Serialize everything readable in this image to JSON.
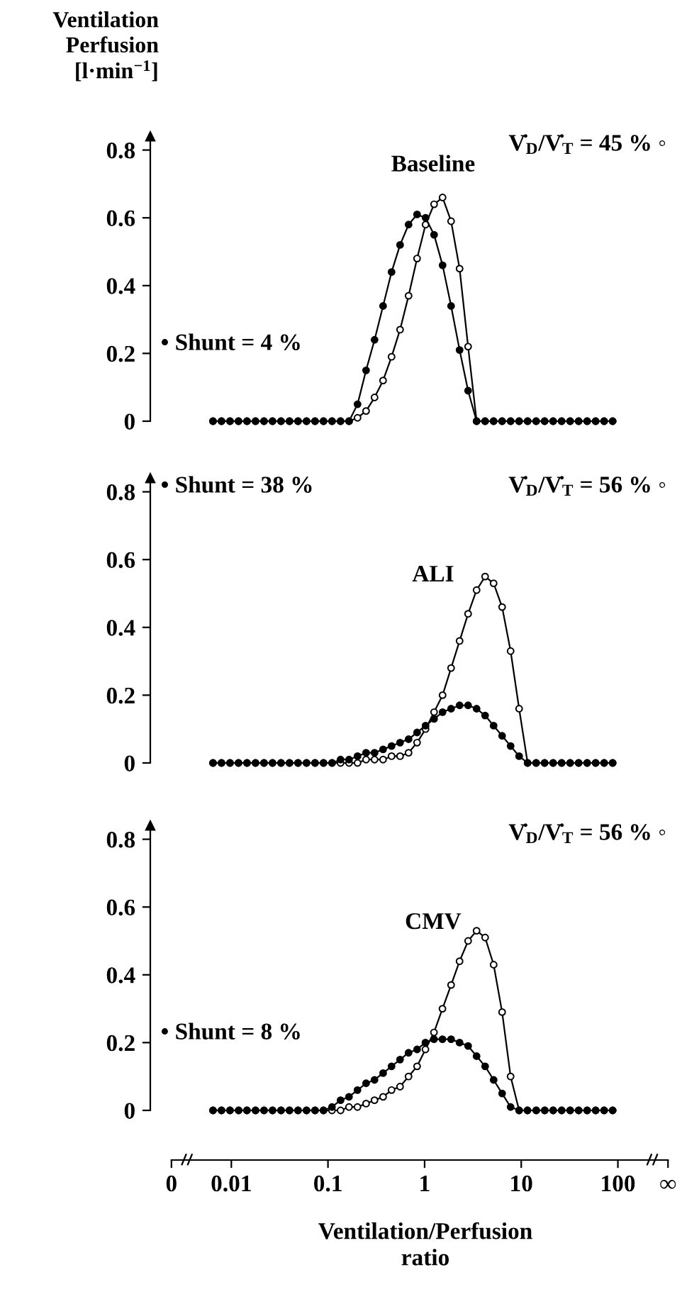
{
  "chart_data": [
    {
      "type": "line",
      "title": "Baseline",
      "ylabel": "Ventilation\nPerfusion\n[l·min$^{−1}$]",
      "annotations": [
        "V̇$_{D}$/V̇$_{T}$ = 45 % ◦",
        "• Shunt = 4 %"
      ],
      "categories": [
        null,
        null,
        null,
        null,
        null,
        null,
        null,
        null,
        null,
        null,
        null,
        null,
        null,
        null,
        null,
        null,
        null,
        null,
        null,
        null,
        null,
        null,
        null,
        null,
        null,
        null,
        null,
        null,
        null,
        null,
        null,
        null,
        null,
        null,
        null,
        null,
        null,
        null,
        null,
        null,
        null,
        null,
        null,
        null,
        null,
        null,
        null,
        null
      ],
      "series": [
        {
          "color": "#ffffff",
          "values": [
            0,
            0,
            0,
            0,
            0,
            0,
            0,
            0,
            0,
            0,
            0,
            0,
            0,
            0,
            0,
            0,
            0,
            0.01,
            0.03,
            0.07,
            0.12,
            0.19,
            0.27,
            0.37,
            0.48,
            0.58,
            0.64,
            0.66,
            0.59,
            0.45,
            0.22,
            0,
            0,
            0,
            0,
            0,
            0,
            0,
            0,
            0,
            0,
            0,
            0,
            0,
            0,
            0,
            0,
            0
          ]
        },
        {
          "color": "#000000",
          "values": [
            0,
            0,
            0,
            0,
            0,
            0,
            0,
            0,
            0,
            0,
            0,
            0,
            0,
            0,
            0,
            0,
            0,
            0.05,
            0.15,
            0.24,
            0.34,
            0.44,
            0.52,
            0.58,
            0.61,
            0.6,
            0.55,
            0.46,
            0.34,
            0.21,
            0.09,
            0,
            0,
            0,
            0,
            0,
            0,
            0,
            0,
            0,
            0,
            0,
            0,
            0,
            0,
            0,
            0,
            0
          ]
        }
      ],
      "ylim": [
        0,
        0.84
      ],
      "yticks": [
        0,
        0.2,
        0.4,
        0.6,
        0.8
      ],
      "marker": "circle",
      "line_style": "solid",
      "tick_labels": "y"
    },
    {
      "type": "line",
      "title": "ALI",
      "annotations": [
        "V̇$_{D}$/V̇$_{T}$ = 56 % ◦",
        "• Shunt = 38 %"
      ],
      "categories": [
        null,
        null,
        null,
        null,
        null,
        null,
        null,
        null,
        null,
        null,
        null,
        null,
        null,
        null,
        null,
        null,
        null,
        null,
        null,
        null,
        null,
        null,
        null,
        null,
        null,
        null,
        null,
        null,
        null,
        null,
        null,
        null,
        null,
        null,
        null,
        null,
        null,
        null,
        null,
        null,
        null,
        null,
        null,
        null,
        null,
        null,
        null,
        null
      ],
      "series": [
        {
          "color": "#ffffff",
          "values": [
            0,
            0,
            0,
            0,
            0,
            0,
            0,
            0,
            0,
            0,
            0,
            0,
            0,
            0,
            0,
            0,
            0,
            0,
            0.01,
            0.01,
            0.01,
            0.02,
            0.02,
            0.03,
            0.06,
            0.1,
            0.15,
            0.2,
            0.28,
            0.36,
            0.44,
            0.51,
            0.55,
            0.53,
            0.46,
            0.33,
            0.16,
            0,
            0,
            0,
            0,
            0,
            0,
            0,
            0,
            0,
            0,
            0
          ]
        },
        {
          "color": "#000000",
          "values": [
            0,
            0,
            0,
            0,
            0,
            0,
            0,
            0,
            0,
            0,
            0,
            0,
            0,
            0,
            0,
            0.01,
            0.01,
            0.02,
            0.03,
            0.03,
            0.04,
            0.05,
            0.06,
            0.07,
            0.09,
            0.11,
            0.13,
            0.15,
            0.16,
            0.17,
            0.17,
            0.16,
            0.14,
            0.11,
            0.08,
            0.05,
            0.02,
            0,
            0,
            0,
            0,
            0,
            0,
            0,
            0,
            0,
            0,
            0
          ]
        }
      ],
      "ylim": [
        0,
        0.84
      ],
      "yticks": [
        0,
        0.2,
        0.4,
        0.6,
        0.8
      ],
      "marker": "circle",
      "line_style": "solid",
      "tick_labels": "y"
    },
    {
      "type": "line",
      "title": "CMV",
      "xlabel": "Ventilation/Perfusion\nratio",
      "annotations": [
        "V̇$_{D}$/V̇$_{T}$ = 56 % ◦",
        "• Shunt = 8 %"
      ],
      "x": [
        0.00646,
        0.00791,
        0.00968,
        0.0119,
        0.0145,
        0.0178,
        0.0218,
        0.0267,
        0.0327,
        0.04,
        0.049,
        0.06,
        0.0735,
        0.0899,
        0.11,
        0.135,
        0.165,
        0.202,
        0.248,
        0.303,
        0.372,
        0.455,
        0.557,
        0.682,
        0.836,
        1.02,
        1.25,
        1.53,
        1.88,
        2.3,
        2.82,
        3.45,
        4.23,
        5.18,
        6.34,
        7.76,
        9.51,
        11.6,
        14.3,
        17.5,
        21.4,
        26.2,
        32.1,
        39.3,
        48.1,
        58.9,
        72.1,
        88.3
      ],
      "series": [
        {
          "color": "#ffffff",
          "values": [
            0,
            0,
            0,
            0,
            0,
            0,
            0,
            0,
            0,
            0,
            0,
            0,
            0,
            0,
            0,
            0,
            0.01,
            0.01,
            0.02,
            0.03,
            0.04,
            0.06,
            0.07,
            0.1,
            0.13,
            0.18,
            0.23,
            0.3,
            0.37,
            0.44,
            0.5,
            0.53,
            0.51,
            0.43,
            0.29,
            0.1,
            0,
            0,
            0,
            0,
            0,
            0,
            0,
            0,
            0,
            0,
            0,
            0
          ]
        },
        {
          "color": "#000000",
          "values": [
            0,
            0,
            0,
            0,
            0,
            0,
            0,
            0,
            0,
            0,
            0,
            0,
            0,
            0,
            0.01,
            0.03,
            0.04,
            0.06,
            0.08,
            0.09,
            0.11,
            0.13,
            0.15,
            0.17,
            0.18,
            0.2,
            0.21,
            0.21,
            0.21,
            0.2,
            0.19,
            0.16,
            0.13,
            0.09,
            0.05,
            0.01,
            0,
            0,
            0,
            0,
            0,
            0,
            0,
            0,
            0,
            0,
            0,
            0
          ]
        }
      ],
      "xlim": [
        0.00145,
        340
      ],
      "xticks": [
        {
          "value": 0.0024,
          "label": "0"
        },
        0.01,
        0.1,
        1,
        10,
        100,
        {
          "value": 330,
          "label": "∞"
        }
      ],
      "ylim": [
        0,
        0.84
      ],
      "yticks": [
        0,
        0.2,
        0.4,
        0.6,
        0.8
      ],
      "log": "x",
      "marker": "circle",
      "line_style": "solid"
    }
  ]
}
